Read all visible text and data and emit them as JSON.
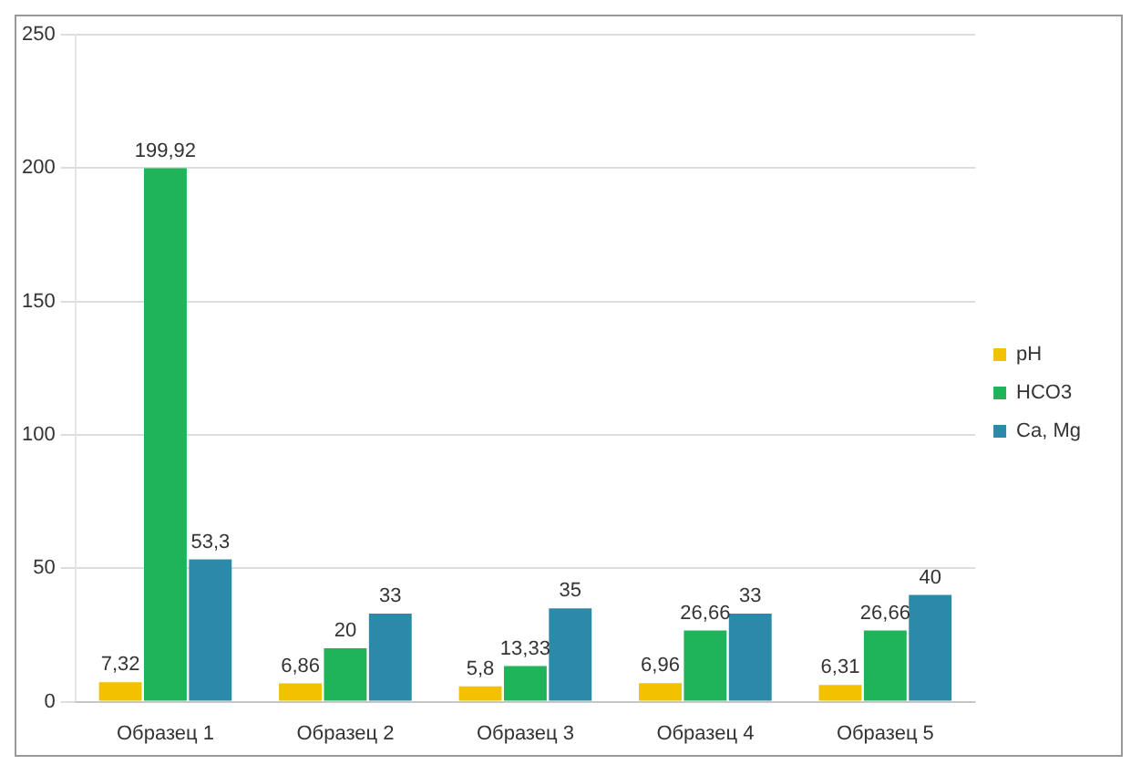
{
  "chart_data": {
    "type": "bar",
    "categories": [
      "Образец 1",
      "Образец 2",
      "Образец 3",
      "Образец 4",
      "Образец 5"
    ],
    "series": [
      {
        "name": "pH",
        "color": "#f2c100",
        "values": [
          7.32,
          6.86,
          5.8,
          6.96,
          6.31
        ],
        "value_labels": [
          "7,32",
          "6,86",
          "5,8",
          "6,96",
          "6,31"
        ]
      },
      {
        "name": "HCO3",
        "color": "#1fb35a",
        "values": [
          199.92,
          20,
          13.33,
          26.66,
          26.66
        ],
        "value_labels": [
          "199,92",
          "20",
          "13,33",
          "26,66",
          "26,66"
        ]
      },
      {
        "name": "Ca, Mg",
        "color": "#2a8aa8",
        "values": [
          53.3,
          33,
          35,
          33,
          40
        ],
        "value_labels": [
          "53,3",
          "33",
          "35",
          "33",
          "40"
        ]
      }
    ],
    "ylim": [
      0,
      250
    ],
    "yticks": [
      0,
      50,
      100,
      150,
      200,
      250
    ],
    "grid": "y",
    "legend": "right"
  }
}
